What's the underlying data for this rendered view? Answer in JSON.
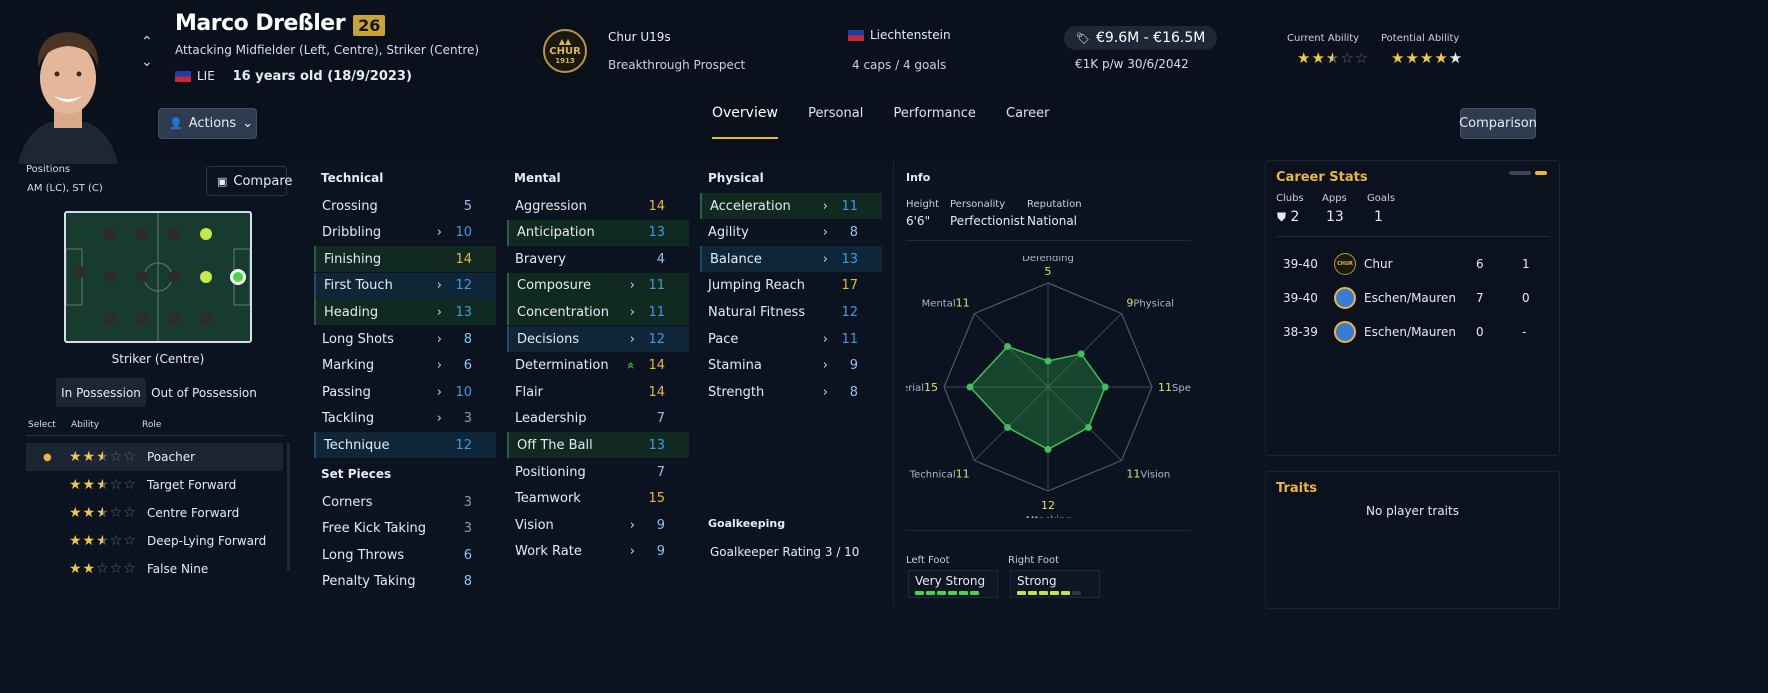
{
  "player": {
    "name": "Marco Dreßler",
    "rating": "26",
    "positions_text": "Attacking Midfielder (Left, Centre), Striker (Centre)",
    "nationality_code": "LIE",
    "age_text": "16 years old (18/9/2023)",
    "club": "Chur U19s",
    "status": "Breakthrough Prospect",
    "crest_text": "CHUR",
    "crest_year": "1913",
    "nation": "Liechtenstein",
    "caps": "4 caps / 4 goals",
    "value": "€9.6M - €16.5M",
    "wage": "€1K p/w 30/6/2042",
    "current_ability_label": "Current Ability",
    "potential_ability_label": "Potential Ability",
    "current_ability_stars": 2.5,
    "potential_ability_stars": 4.5
  },
  "actions_label": "Actions",
  "comparison_label": "Comparison",
  "tabs": [
    "Overview",
    "Personal",
    "Performance",
    "Career"
  ],
  "positions": {
    "label": "Positions",
    "value": "AM (LC), ST (C)",
    "compare_label": "Compare",
    "selected_position": "Striker (Centre)",
    "possession_tabs": [
      "In Possession",
      "Out of Possession"
    ]
  },
  "roles": {
    "headers": [
      "Select",
      "Ability",
      "Role"
    ],
    "items": [
      {
        "name": "Poacher",
        "stars": 2.5,
        "selected": true
      },
      {
        "name": "Target Forward",
        "stars": 2.5
      },
      {
        "name": "Centre Forward",
        "stars": 2.5
      },
      {
        "name": "Deep-Lying Forward",
        "stars": 2.5
      },
      {
        "name": "False Nine",
        "stars": 2
      }
    ]
  },
  "technical": {
    "title": "Technical",
    "attrs": [
      {
        "name": "Crossing",
        "value": "5",
        "arrow": "",
        "hl": ""
      },
      {
        "name": "Dribbling",
        "value": "10",
        "arrow": "›",
        "hl": ""
      },
      {
        "name": "Finishing",
        "value": "14",
        "arrow": "",
        "hl": "g"
      },
      {
        "name": "First Touch",
        "value": "12",
        "arrow": "›",
        "hl": "b"
      },
      {
        "name": "Heading",
        "value": "13",
        "arrow": "›",
        "hl": "g"
      },
      {
        "name": "Long Shots",
        "value": "8",
        "arrow": "›",
        "hl": ""
      },
      {
        "name": "Marking",
        "value": "6",
        "arrow": "›",
        "hl": ""
      },
      {
        "name": "Passing",
        "value": "10",
        "arrow": "›",
        "hl": ""
      },
      {
        "name": "Tackling",
        "value": "3",
        "arrow": "›",
        "hl": ""
      },
      {
        "name": "Technique",
        "value": "12",
        "arrow": "",
        "hl": "b"
      }
    ]
  },
  "set_pieces": {
    "title": "Set Pieces",
    "attrs": [
      {
        "name": "Corners",
        "value": "3"
      },
      {
        "name": "Free Kick Taking",
        "value": "3"
      },
      {
        "name": "Long Throws",
        "value": "6"
      },
      {
        "name": "Penalty Taking",
        "value": "8"
      }
    ]
  },
  "mental": {
    "title": "Mental",
    "attrs": [
      {
        "name": "Aggression",
        "value": "14",
        "arrow": "",
        "hl": ""
      },
      {
        "name": "Anticipation",
        "value": "13",
        "arrow": "",
        "hl": "g"
      },
      {
        "name": "Bravery",
        "value": "4",
        "arrow": "",
        "hl": ""
      },
      {
        "name": "Composure",
        "value": "11",
        "arrow": "›",
        "hl": "g"
      },
      {
        "name": "Concentration",
        "value": "11",
        "arrow": "›",
        "hl": "g"
      },
      {
        "name": "Decisions",
        "value": "12",
        "arrow": "›",
        "hl": "b"
      },
      {
        "name": "Determination",
        "value": "14",
        "arrow": "»",
        "hl": ""
      },
      {
        "name": "Flair",
        "value": "14",
        "arrow": "",
        "hl": ""
      },
      {
        "name": "Leadership",
        "value": "7",
        "arrow": "",
        "hl": ""
      },
      {
        "name": "Off The Ball",
        "value": "13",
        "arrow": "",
        "hl": "g"
      },
      {
        "name": "Positioning",
        "value": "7",
        "arrow": "",
        "hl": ""
      },
      {
        "name": "Teamwork",
        "value": "15",
        "arrow": "",
        "hl": ""
      },
      {
        "name": "Vision",
        "value": "9",
        "arrow": "›",
        "hl": ""
      },
      {
        "name": "Work Rate",
        "value": "9",
        "arrow": "›",
        "hl": ""
      }
    ]
  },
  "physical": {
    "title": "Physical",
    "attrs": [
      {
        "name": "Acceleration",
        "value": "11",
        "arrow": "›",
        "hl": "g"
      },
      {
        "name": "Agility",
        "value": "8",
        "arrow": "›",
        "hl": ""
      },
      {
        "name": "Balance",
        "value": "13",
        "arrow": "›",
        "hl": "b"
      },
      {
        "name": "Jumping Reach",
        "value": "17",
        "arrow": "",
        "hl": ""
      },
      {
        "name": "Natural Fitness",
        "value": "12",
        "arrow": "",
        "hl": ""
      },
      {
        "name": "Pace",
        "value": "11",
        "arrow": "›",
        "hl": ""
      },
      {
        "name": "Stamina",
        "value": "9",
        "arrow": "›",
        "hl": ""
      },
      {
        "name": "Strength",
        "value": "8",
        "arrow": "›",
        "hl": ""
      }
    ]
  },
  "goalkeeping": {
    "title": "Goalkeeping",
    "rating_text": "Goalkeeper Rating 3 / 10"
  },
  "info": {
    "title": "Info",
    "height_label": "Height",
    "height": "6'6\"",
    "personality_label": "Personality",
    "personality": "Perfectionist",
    "reputation_label": "Reputation",
    "reputation": "National",
    "left_foot_label": "Left Foot",
    "left_foot": "Very Strong",
    "left_foot_level": 6,
    "right_foot_label": "Right Foot",
    "right_foot": "Strong",
    "right_foot_level": 5
  },
  "radar": {
    "axes": [
      {
        "label": "Defending",
        "value": "5"
      },
      {
        "label": "Physical",
        "value": "9"
      },
      {
        "label": "Speed",
        "value": "11"
      },
      {
        "label": "Vision",
        "value": "11"
      },
      {
        "label": "Attacking",
        "value": "12"
      },
      {
        "label": "Technical",
        "value": "11"
      },
      {
        "label": "Aerial",
        "value": "15"
      },
      {
        "label": "Mental",
        "value": "11"
      }
    ]
  },
  "career": {
    "title": "Career Stats",
    "clubs_label": "Clubs",
    "clubs": "2",
    "apps_label": "Apps",
    "apps": "13",
    "goals_label": "Goals",
    "goals": "1",
    "rows": [
      {
        "season": "39-40",
        "club": "Chur",
        "apps": "6",
        "goals": "1"
      },
      {
        "season": "39-40",
        "club": "Eschen/Mauren",
        "apps": "7",
        "goals": "0"
      },
      {
        "season": "38-39",
        "club": "Eschen/Mauren",
        "apps": "0",
        "goals": "-"
      }
    ]
  },
  "traits": {
    "title": "Traits",
    "empty": "No player traits"
  }
}
